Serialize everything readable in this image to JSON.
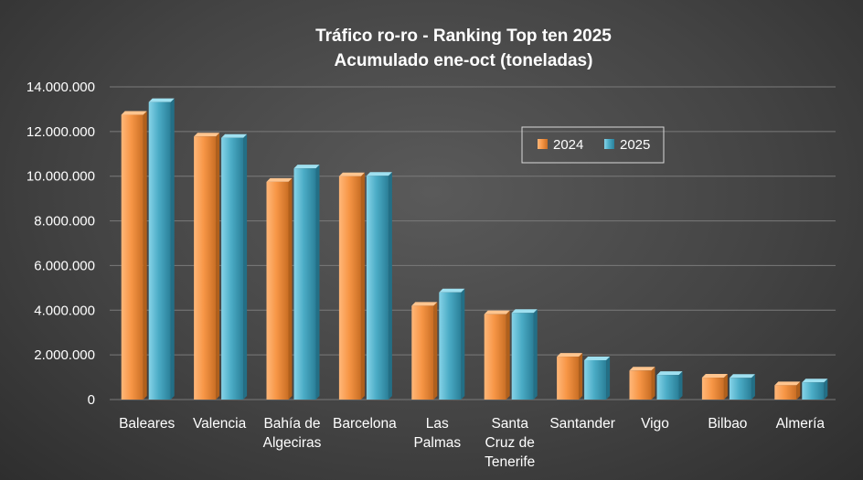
{
  "chart_data": {
    "type": "bar",
    "title": "Tráfico ro-ro - Ranking Top ten 2025",
    "subtitle": "Acumulado ene-oct (toneladas)",
    "xlabel": "",
    "ylabel": "",
    "categories": [
      [
        "Baleares"
      ],
      [
        "Valencia"
      ],
      [
        "Bahía de",
        "Algeciras"
      ],
      [
        "Barcelona"
      ],
      [
        "Las",
        "Palmas"
      ],
      [
        "Santa",
        "Cruz de",
        "Tenerife"
      ],
      [
        "Santander"
      ],
      [
        "Vigo"
      ],
      [
        "Bilbao"
      ],
      [
        "Almería"
      ]
    ],
    "series": [
      {
        "name": "2024",
        "color": "#f79646",
        "values": [
          12750000,
          11780000,
          9750000,
          10000000,
          4200000,
          3820000,
          1920000,
          1300000,
          980000,
          640000
        ]
      },
      {
        "name": "2025",
        "color": "#4bacc6",
        "values": [
          13320000,
          11720000,
          10350000,
          10020000,
          4800000,
          3880000,
          1760000,
          1100000,
          970000,
          770000
        ]
      }
    ],
    "ylim": [
      0,
      14000000
    ],
    "yticks": [
      "0",
      "2.000.000",
      "4.000.000",
      "6.000.000",
      "8.000.000",
      "10.000.000",
      "12.000.000",
      "14.000.000"
    ],
    "ytick_values": [
      0,
      2000000,
      4000000,
      6000000,
      8000000,
      10000000,
      12000000,
      14000000
    ],
    "grid": true,
    "legend_position": "top-right"
  }
}
